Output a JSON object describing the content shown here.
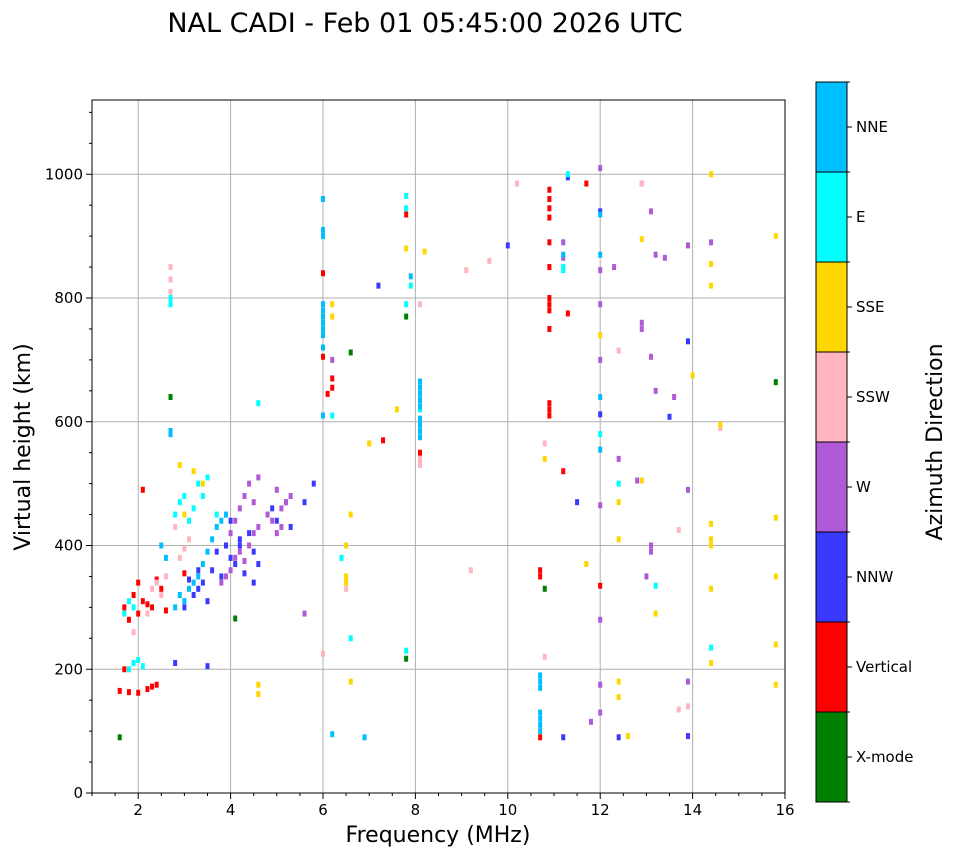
{
  "chart_data": {
    "type": "scatter",
    "title": "NAL CADI - Feb 01 05:45:00 2026 UTC",
    "xlabel": "Frequency (MHz)",
    "ylabel": "Virtual height (km)",
    "xlim": [
      1,
      16
    ],
    "ylim": [
      0,
      1120
    ],
    "xticks": [
      2,
      4,
      6,
      8,
      10,
      12,
      14,
      16
    ],
    "yticks": [
      0,
      200,
      400,
      600,
      800,
      1000
    ],
    "grid": true,
    "colorbar": {
      "label": "Azimuth Direction",
      "categories": [
        {
          "name": "X-mode",
          "color": "#008000"
        },
        {
          "name": "Vertical",
          "color": "#ff0000"
        },
        {
          "name": "NNW",
          "color": "#3a3aff"
        },
        {
          "name": "W",
          "color": "#b05ad8"
        },
        {
          "name": "SSW",
          "color": "#ffb6c1"
        },
        {
          "name": "SSE",
          "color": "#ffd700"
        },
        {
          "name": "E",
          "color": "#00ffff"
        },
        {
          "name": "NNE",
          "color": "#00bfff"
        }
      ]
    },
    "series": [
      {
        "name": "X-mode",
        "points": [
          [
            2.7,
            640
          ],
          [
            6.6,
            712
          ],
          [
            7.8,
            770
          ],
          [
            4.1,
            282
          ],
          [
            10.8,
            330
          ],
          [
            7.8,
            217
          ],
          [
            15.8,
            664
          ],
          [
            1.6,
            90
          ]
        ]
      },
      {
        "name": "Vertical",
        "points": [
          [
            1.6,
            165
          ],
          [
            1.8,
            163
          ],
          [
            2.0,
            162
          ],
          [
            2.2,
            168
          ],
          [
            2.3,
            172
          ],
          [
            2.4,
            175
          ],
          [
            1.7,
            300
          ],
          [
            1.8,
            280
          ],
          [
            1.9,
            320
          ],
          [
            2.0,
            290
          ],
          [
            2.1,
            310
          ],
          [
            2.2,
            305
          ],
          [
            2.3,
            300
          ],
          [
            2.5,
            330
          ],
          [
            2.6,
            295
          ],
          [
            2.1,
            490
          ],
          [
            1.7,
            200
          ],
          [
            2.4,
            345
          ],
          [
            2.0,
            340
          ],
          [
            3.0,
            355
          ],
          [
            6.0,
            840
          ],
          [
            6.0,
            705
          ],
          [
            6.2,
            670
          ],
          [
            6.2,
            655
          ],
          [
            6.1,
            645
          ],
          [
            7.3,
            570
          ],
          [
            8.1,
            550
          ],
          [
            8.1,
            540
          ],
          [
            10.9,
            975
          ],
          [
            10.9,
            960
          ],
          [
            10.9,
            945
          ],
          [
            10.9,
            930
          ],
          [
            10.9,
            890
          ],
          [
            10.9,
            850
          ],
          [
            10.9,
            800
          ],
          [
            10.9,
            790
          ],
          [
            10.9,
            780
          ],
          [
            10.9,
            750
          ],
          [
            10.9,
            630
          ],
          [
            10.9,
            620
          ],
          [
            10.9,
            610
          ],
          [
            10.7,
            360
          ],
          [
            10.7,
            350
          ],
          [
            10.7,
            90
          ],
          [
            11.2,
            520
          ],
          [
            11.7,
            985
          ],
          [
            12.0,
            335
          ],
          [
            11.3,
            775
          ],
          [
            7.8,
            935
          ]
        ]
      },
      {
        "name": "NNW",
        "points": [
          [
            3.0,
            300
          ],
          [
            3.2,
            320
          ],
          [
            3.4,
            340
          ],
          [
            3.5,
            310
          ],
          [
            3.3,
            330
          ],
          [
            3.6,
            360
          ],
          [
            3.8,
            350
          ],
          [
            4.0,
            380
          ],
          [
            4.2,
            400
          ],
          [
            4.3,
            355
          ],
          [
            4.1,
            370
          ],
          [
            3.9,
            400
          ],
          [
            3.7,
            390
          ],
          [
            4.4,
            420
          ],
          [
            4.5,
            390
          ],
          [
            4.2,
            410
          ],
          [
            5.0,
            440
          ],
          [
            5.2,
            470
          ],
          [
            4.9,
            460
          ],
          [
            5.6,
            470
          ],
          [
            5.8,
            500
          ],
          [
            3.5,
            205
          ],
          [
            2.8,
            210
          ],
          [
            5.3,
            430
          ],
          [
            4.0,
            440
          ],
          [
            3.1,
            345
          ],
          [
            3.3,
            360
          ],
          [
            4.5,
            340
          ],
          [
            4.6,
            370
          ],
          [
            7.2,
            820
          ],
          [
            10.0,
            885
          ],
          [
            11.2,
            90
          ],
          [
            11.5,
            470
          ],
          [
            12.4,
            90
          ],
          [
            13.5,
            608
          ],
          [
            13.9,
            730
          ],
          [
            13.9,
            92
          ],
          [
            12.0,
            612
          ],
          [
            12.0,
            940
          ],
          [
            11.3,
            995
          ]
        ]
      },
      {
        "name": "W",
        "points": [
          [
            4.0,
            360
          ],
          [
            4.1,
            380
          ],
          [
            4.2,
            390
          ],
          [
            4.3,
            375
          ],
          [
            4.4,
            400
          ],
          [
            4.5,
            420
          ],
          [
            4.6,
            430
          ],
          [
            4.0,
            420
          ],
          [
            4.1,
            440
          ],
          [
            4.2,
            460
          ],
          [
            4.3,
            480
          ],
          [
            4.4,
            500
          ],
          [
            4.5,
            470
          ],
          [
            5.0,
            490
          ],
          [
            5.1,
            460
          ],
          [
            5.2,
            470
          ],
          [
            5.3,
            480
          ],
          [
            4.8,
            450
          ],
          [
            4.9,
            440
          ],
          [
            5.0,
            420
          ],
          [
            5.1,
            430
          ],
          [
            3.9,
            350
          ],
          [
            3.8,
            340
          ],
          [
            4.6,
            510
          ],
          [
            5.6,
            290
          ],
          [
            6.2,
            700
          ],
          [
            11.2,
            890
          ],
          [
            11.8,
            115
          ],
          [
            12.0,
            1010
          ],
          [
            12.0,
            790
          ],
          [
            12.0,
            700
          ],
          [
            12.0,
            465
          ],
          [
            12.0,
            280
          ],
          [
            12.0,
            175
          ],
          [
            12.3,
            850
          ],
          [
            12.4,
            540
          ],
          [
            12.0,
            130
          ],
          [
            12.9,
            985
          ],
          [
            12.9,
            760
          ],
          [
            12.9,
            750
          ],
          [
            13.1,
            940
          ],
          [
            13.2,
            870
          ],
          [
            13.1,
            705
          ],
          [
            13.2,
            650
          ],
          [
            13.4,
            865
          ],
          [
            13.6,
            640
          ],
          [
            13.9,
            885
          ],
          [
            13.9,
            490
          ],
          [
            13.9,
            180
          ],
          [
            14.4,
            890
          ],
          [
            13.1,
            390
          ],
          [
            13.1,
            400
          ],
          [
            13.0,
            350
          ],
          [
            12.0,
            845
          ],
          [
            12.8,
            505
          ],
          [
            11.2,
            865
          ]
        ]
      },
      {
        "name": "SSW",
        "points": [
          [
            2.7,
            850
          ],
          [
            2.7,
            830
          ],
          [
            2.7,
            810
          ],
          [
            2.3,
            330
          ],
          [
            2.4,
            340
          ],
          [
            2.5,
            320
          ],
          [
            2.6,
            350
          ],
          [
            2.8,
            430
          ],
          [
            2.9,
            380
          ],
          [
            3.0,
            395
          ],
          [
            3.1,
            410
          ],
          [
            2.2,
            290
          ],
          [
            1.9,
            260
          ],
          [
            8.1,
            540
          ],
          [
            8.1,
            530
          ],
          [
            9.1,
            845
          ],
          [
            9.2,
            360
          ],
          [
            9.6,
            860
          ],
          [
            10.2,
            985
          ],
          [
            10.8,
            220
          ],
          [
            10.8,
            565
          ],
          [
            12.4,
            715
          ],
          [
            12.9,
            985
          ],
          [
            13.7,
            425
          ],
          [
            13.7,
            135
          ],
          [
            13.9,
            140
          ],
          [
            14.6,
            590
          ],
          [
            6.5,
            330
          ],
          [
            6.5,
            345
          ],
          [
            8.1,
            790
          ],
          [
            6.0,
            225
          ]
        ]
      },
      {
        "name": "SSE",
        "points": [
          [
            6.2,
            790
          ],
          [
            6.2,
            770
          ],
          [
            6.6,
            450
          ],
          [
            6.5,
            400
          ],
          [
            6.5,
            350
          ],
          [
            6.5,
            340
          ],
          [
            6.6,
            180
          ],
          [
            7.0,
            565
          ],
          [
            7.6,
            620
          ],
          [
            7.8,
            880
          ],
          [
            8.2,
            875
          ],
          [
            10.8,
            540
          ],
          [
            11.7,
            370
          ],
          [
            12.0,
            740
          ],
          [
            12.4,
            470
          ],
          [
            12.4,
            410
          ],
          [
            12.4,
            180
          ],
          [
            12.4,
            155
          ],
          [
            12.6,
            92
          ],
          [
            12.9,
            895
          ],
          [
            12.9,
            505
          ],
          [
            13.2,
            290
          ],
          [
            14.0,
            675
          ],
          [
            14.4,
            1000
          ],
          [
            14.4,
            855
          ],
          [
            14.4,
            820
          ],
          [
            14.4,
            435
          ],
          [
            14.4,
            410
          ],
          [
            14.4,
            400
          ],
          [
            14.4,
            330
          ],
          [
            14.4,
            210
          ],
          [
            14.6,
            595
          ],
          [
            15.8,
            900
          ],
          [
            15.8,
            445
          ],
          [
            15.8,
            350
          ],
          [
            15.8,
            240
          ],
          [
            15.8,
            175
          ],
          [
            4.6,
            175
          ],
          [
            4.6,
            160
          ],
          [
            2.9,
            530
          ],
          [
            3.2,
            520
          ],
          [
            3.0,
            450
          ],
          [
            3.4,
            500
          ]
        ]
      },
      {
        "name": "E",
        "points": [
          [
            2.7,
            790
          ],
          [
            2.7,
            800
          ],
          [
            1.8,
            200
          ],
          [
            1.9,
            210
          ],
          [
            2.0,
            215
          ],
          [
            2.1,
            205
          ],
          [
            1.7,
            290
          ],
          [
            1.8,
            310
          ],
          [
            1.9,
            300
          ],
          [
            2.8,
            450
          ],
          [
            2.9,
            470
          ],
          [
            3.0,
            480
          ],
          [
            3.1,
            440
          ],
          [
            3.2,
            460
          ],
          [
            3.3,
            500
          ],
          [
            3.4,
            480
          ],
          [
            3.5,
            510
          ],
          [
            3.7,
            450
          ],
          [
            6.2,
            610
          ],
          [
            6.6,
            250
          ],
          [
            7.8,
            790
          ],
          [
            7.8,
            230
          ],
          [
            7.8,
            965
          ],
          [
            7.8,
            945
          ],
          [
            7.9,
            820
          ],
          [
            8.1,
            620
          ],
          [
            11.2,
            850
          ],
          [
            11.2,
            845
          ],
          [
            11.3,
            1000
          ],
          [
            12.0,
            580
          ],
          [
            12.4,
            500
          ],
          [
            13.2,
            335
          ],
          [
            14.4,
            235
          ],
          [
            4.6,
            630
          ],
          [
            6.4,
            380
          ]
        ]
      },
      {
        "name": "NNE",
        "points": [
          [
            2.7,
            585
          ],
          [
            2.7,
            580
          ],
          [
            2.8,
            300
          ],
          [
            2.9,
            320
          ],
          [
            3.0,
            310
          ],
          [
            3.1,
            330
          ],
          [
            3.2,
            340
          ],
          [
            3.3,
            350
          ],
          [
            3.4,
            370
          ],
          [
            3.5,
            390
          ],
          [
            3.6,
            410
          ],
          [
            3.7,
            430
          ],
          [
            3.8,
            440
          ],
          [
            3.9,
            450
          ],
          [
            2.6,
            380
          ],
          [
            2.5,
            400
          ],
          [
            6.0,
            960
          ],
          [
            6.0,
            910
          ],
          [
            6.0,
            900
          ],
          [
            6.0,
            790
          ],
          [
            6.0,
            780
          ],
          [
            6.0,
            770
          ],
          [
            6.0,
            760
          ],
          [
            6.0,
            750
          ],
          [
            6.0,
            740
          ],
          [
            6.0,
            720
          ],
          [
            6.0,
            610
          ],
          [
            6.2,
            95
          ],
          [
            6.9,
            90
          ],
          [
            7.9,
            835
          ],
          [
            8.1,
            665
          ],
          [
            8.1,
            655
          ],
          [
            8.1,
            645
          ],
          [
            8.1,
            635
          ],
          [
            8.1,
            625
          ],
          [
            8.1,
            605
          ],
          [
            8.1,
            595
          ],
          [
            8.1,
            585
          ],
          [
            8.1,
            575
          ],
          [
            10.7,
            190
          ],
          [
            10.7,
            180
          ],
          [
            10.7,
            170
          ],
          [
            10.7,
            130
          ],
          [
            10.7,
            120
          ],
          [
            10.7,
            110
          ],
          [
            10.7,
            100
          ],
          [
            11.2,
            870
          ],
          [
            12.0,
            640
          ],
          [
            12.0,
            555
          ],
          [
            12.0,
            870
          ],
          [
            12.0,
            935
          ]
        ]
      }
    ]
  }
}
